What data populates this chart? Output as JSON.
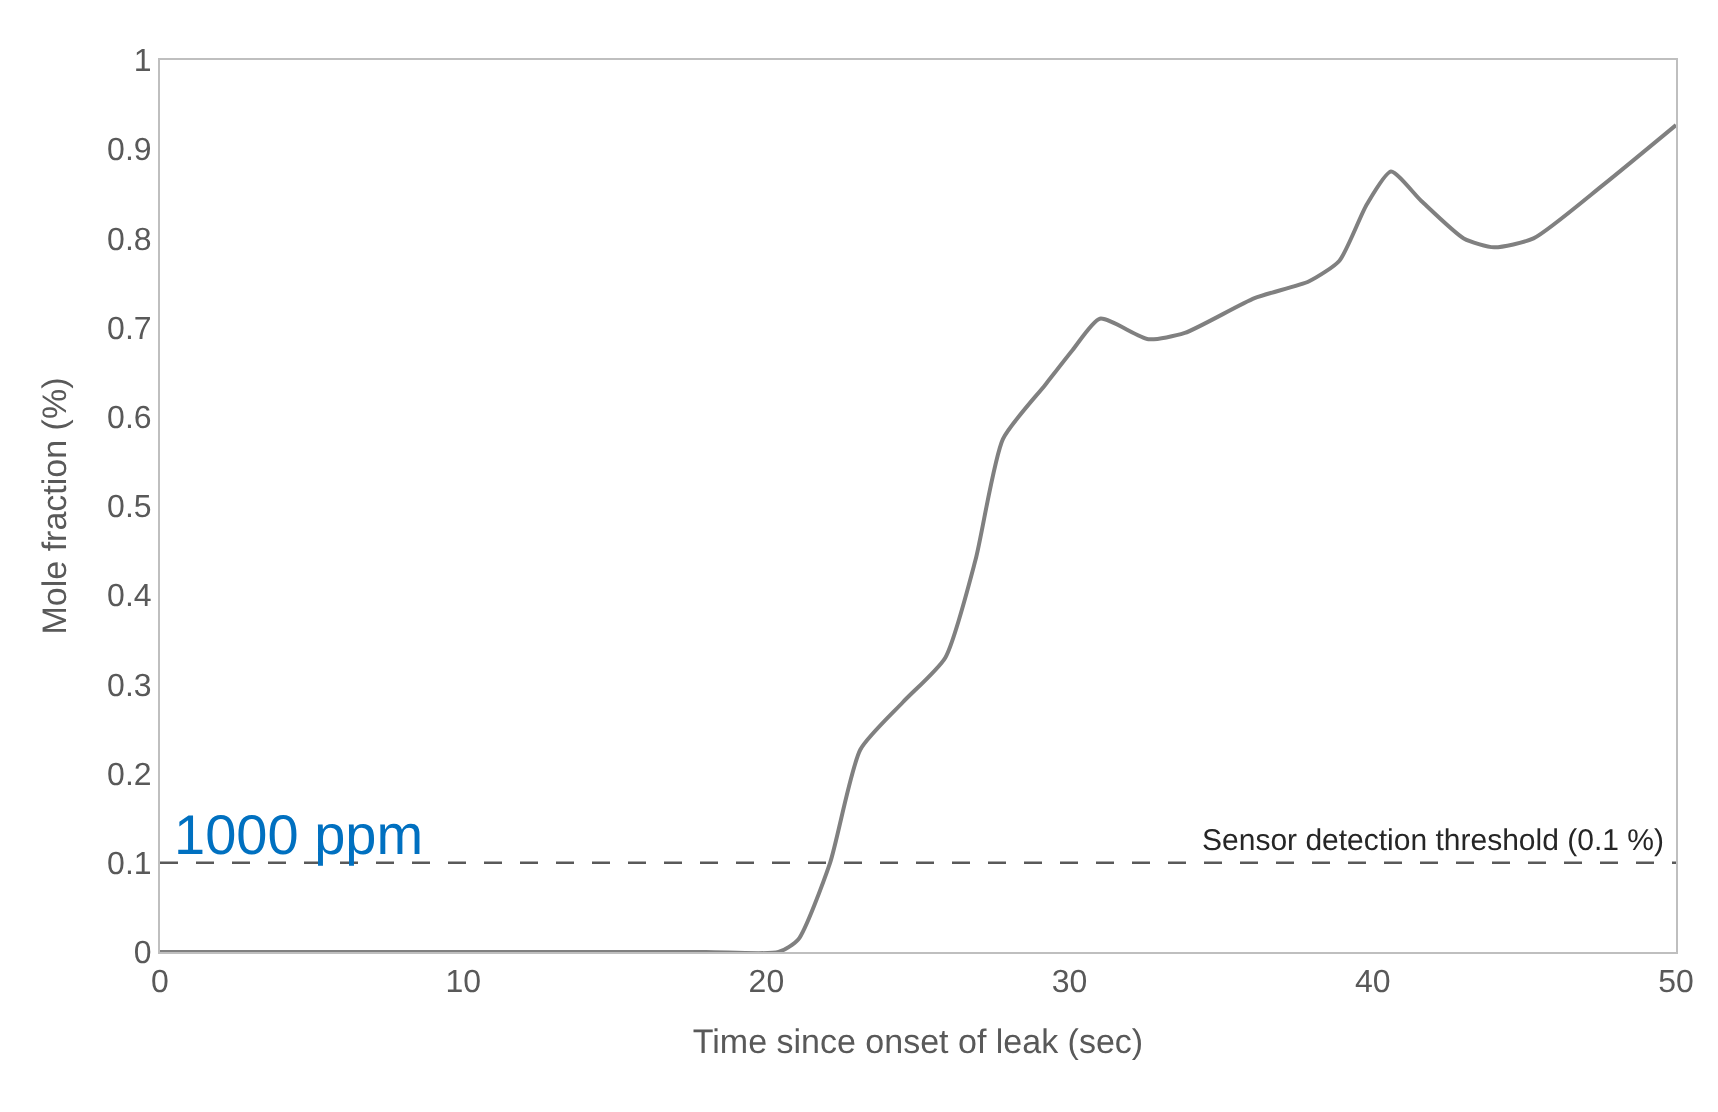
{
  "chart_data": {
    "type": "line",
    "xlabel": "Time since onset of leak (sec)",
    "ylabel": "Mole fraction (%)",
    "xlim": [
      0,
      50
    ],
    "xticks": [
      0,
      10,
      20,
      30,
      40,
      50
    ],
    "ylim": [
      0,
      1
    ],
    "yticks": [
      0,
      0.1,
      0.2,
      0.3,
      0.4,
      0.5,
      0.6,
      0.7,
      0.8,
      0.9,
      1
    ],
    "marker": "none",
    "line_style": "solid",
    "series": [
      {
        "color": "#808080",
        "x": [
          0,
          10,
          18,
          20.4,
          21.05,
          22.1,
          23.1,
          24.5,
          25.9,
          26.9,
          27.8,
          29.2,
          30.1,
          31.0,
          32.6,
          33.8,
          36.1,
          37.9,
          38.9,
          39.8,
          40.6,
          41.6,
          43.0,
          44.0,
          45.3,
          47.6,
          50
        ],
        "values": [
          0,
          0,
          0,
          0,
          0.014,
          0.1,
          0.227,
          0.28,
          0.33,
          0.44,
          0.575,
          0.636,
          0.675,
          0.71,
          0.687,
          0.694,
          0.733,
          0.752,
          0.775,
          0.838,
          0.875,
          0.842,
          0.8,
          0.79,
          0.8,
          0.86,
          0.927
        ]
      }
    ],
    "ref_lines": [
      {
        "axis": "y",
        "value": 0.1,
        "label": "Sensor detection threshold (0.1 %)",
        "color": "#595959",
        "line_style": "dashed"
      }
    ],
    "annotations": [
      {
        "text": "1000 ppm",
        "x": 0.3,
        "y": 0.1
      }
    ]
  }
}
